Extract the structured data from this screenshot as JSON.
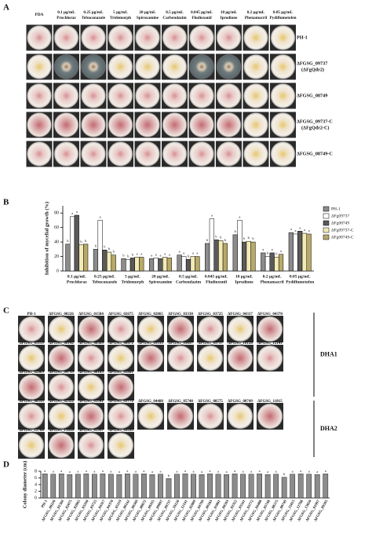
{
  "panel_labels": [
    "A",
    "B",
    "C",
    "D"
  ],
  "panel_a": {
    "columns": [
      {
        "concentration": null,
        "name": "PDA"
      },
      {
        "concentration": "0.1 μg/mL",
        "name": "Prochloraz"
      },
      {
        "concentration": "0.25 μg/mL",
        "name": "Tebuconazole"
      },
      {
        "concentration": "5 μg/mL",
        "name": "Tridemorph"
      },
      {
        "concentration": "20 μg/mL",
        "name": "Spiroxamine"
      },
      {
        "concentration": "0.5 μg/mL",
        "name": "Carbendazim"
      },
      {
        "concentration": "0.045 μg/mL",
        "name": "Fludioxonil"
      },
      {
        "concentration": "10 μg/mL",
        "name": "Iprodione"
      },
      {
        "concentration": "0.2 μg/mL",
        "name": "Phenamacril"
      },
      {
        "concentration": "0.05 μg/mL",
        "name": "Pydiflumetofen"
      }
    ],
    "rows": [
      {
        "label": "PH-1",
        "sublabel": null
      },
      {
        "label": "ΔFGSG_09737",
        "sublabel": "(ΔFgQdr2)"
      },
      {
        "label": "ΔFGSG_08749",
        "sublabel": null
      },
      {
        "label": "ΔFGSG_09737-C",
        "sublabel": "(ΔFgQdr2-C)"
      },
      {
        "label": "ΔFGSG_08749-C",
        "sublabel": null
      }
    ]
  },
  "panel_c": {
    "rows": [
      [
        "PH-1",
        "ΔFGSG_00226",
        "ΔFGSG_01584",
        "ΔFGSG_02675",
        "ΔFGSG_02865",
        "ΔFGSG_03330",
        "ΔFGSG_03725",
        "ΔFGSG_04317",
        "ΔFGSG_04370"
      ],
      [
        "ΔFGSG_05119",
        "ΔFGSG_06142",
        "ΔFGSG_06569",
        "ΔFGSG_08672",
        "ΔFGSG_09335",
        "ΔFGSG_09697",
        "ΔFGSG_09737",
        "ΔFGSG_10120",
        "ΔFGSG_12141"
      ],
      [
        "ΔFGSG_02869",
        "ΔFGSG_04799",
        "ΔFGSG_00183",
        "ΔFGSG_05801"
      ],
      [
        "ΔFGSG_00593",
        "ΔFGSG_02322",
        "ΔFGSG_03541",
        "ΔFGSG_03772",
        "ΔFGSG_04488",
        "ΔFGSG_05748",
        "ΔFGSG_08575",
        "ΔFGSG_08749",
        "ΔFGSG_11815"
      ],
      [
        "ΔFGSG_12768",
        "ΔFGSG_13650",
        "ΔFGSG_01997",
        "ΔFGSG_09595"
      ]
    ],
    "groups": [
      "DHA1",
      "DHA2"
    ]
  },
  "chart_data": [
    {
      "type": "bar",
      "y_label": "Inhibition of mycelial growth (%)",
      "categories": [
        "Prochloraz",
        "Tebuconazole",
        "Tridemorph",
        "Spiroxamine",
        "Carbendazim",
        "Fludioxonil",
        "Iprodione",
        "Phenamacril",
        "Pydiflumetofen"
      ],
      "concentrations": [
        "0.1 μg/mL",
        "0.25 μg/mL",
        "5 μg/mL",
        "20 μg/mL",
        "0.5 μg/mL",
        "0.045 μg/mL",
        "10 μg/mL",
        "0.2 μg/mL",
        "0.05 μg/mL"
      ],
      "series": [
        {
          "name": "PH-1",
          "color": "#8c8c8c",
          "values": [
            37,
            30,
            17,
            17,
            22,
            38,
            50,
            25,
            53
          ],
          "letters": [
            "b",
            "b",
            "b",
            "a",
            "a",
            "b",
            "b",
            "a",
            "a"
          ]
        },
        {
          "name": "ΔFg09737",
          "color": "#ffffff",
          "values": [
            75,
            70,
            16,
            18,
            20,
            72,
            70,
            20,
            51
          ],
          "letters": [
            "a",
            "a",
            "b",
            "a",
            "a",
            "a",
            "a",
            "b",
            "a"
          ]
        },
        {
          "name": "ΔFg08749",
          "color": "#5a5a5a",
          "values": [
            77,
            29,
            18,
            17,
            16,
            43,
            40,
            25,
            55
          ],
          "letters": [
            "a",
            "b",
            "b",
            "a",
            "b",
            "b",
            "b",
            "a",
            "a"
          ]
        },
        {
          "name": "ΔFg09737-C",
          "color": "#f3ebb5",
          "values": [
            36,
            26,
            19,
            19,
            20,
            42,
            41,
            19,
            52
          ],
          "letters": [
            "b",
            "b",
            "a",
            "a",
            "a",
            "b",
            "b",
            "b",
            "a"
          ]
        },
        {
          "name": "ΔFg08749-C",
          "color": "#b7a96a",
          "values": [
            37,
            22,
            19,
            18,
            20,
            38,
            40,
            23,
            51
          ],
          "letters": [
            "b",
            "b",
            "a",
            "a",
            "a",
            "b",
            "b",
            "a",
            "a"
          ]
        }
      ],
      "ylim": [
        0,
        90
      ],
      "yticks": [
        0,
        20,
        40,
        60,
        80
      ],
      "legend": "right"
    },
    {
      "type": "bar",
      "y_label": "Colony diameter (cm)",
      "categories": [
        "PH-1",
        "ΔFGSG_00226",
        "ΔFGSG_01584",
        "ΔFGSG_02675",
        "ΔFGSG_02865",
        "ΔFGSG_03330",
        "ΔFGSG_03725",
        "ΔFGSG_04317",
        "ΔFGSG_04370",
        "ΔFGSG_05119",
        "ΔFGSG_06142",
        "ΔFGSG_06569",
        "ΔFGSG_08672",
        "ΔFGSG_09335",
        "ΔFGSG_09697",
        "ΔFGSG_09737",
        "ΔFGSG_10120",
        "ΔFGSG_12141",
        "ΔFGSG_02869",
        "ΔFGSG_04799",
        "ΔFGSG_00183",
        "ΔFGSG_05801",
        "ΔFGSG_00593",
        "ΔFGSG_02322",
        "ΔFGSG_03541",
        "ΔFGSG_03772",
        "ΔFGSG_04488",
        "ΔFGSG_05748",
        "ΔFGSG_08575",
        "ΔFGSG_08749",
        "ΔFGSG_11815",
        "ΔFGSG_12768",
        "ΔFGSG_13650",
        "ΔFGSG_01997",
        "ΔFGSG_09595"
      ],
      "color": "#8c8c8c",
      "values": [
        7.2,
        7.1,
        7.2,
        7.0,
        7.1,
        7.2,
        7.1,
        7.2,
        7.1,
        7.0,
        7.2,
        7.1,
        7.2,
        7.0,
        7.1,
        5.8,
        7.1,
        7.2,
        7.1,
        7.0,
        7.2,
        7.1,
        7.0,
        7.2,
        7.1,
        7.1,
        7.2,
        7.0,
        7.1,
        6.2,
        7.1,
        7.2,
        7.1,
        7.0,
        7.2
      ],
      "letters": [
        "a",
        "a",
        "a",
        "a",
        "a",
        "a",
        "a",
        "a",
        "a",
        "a",
        "a",
        "a",
        "a",
        "a",
        "a",
        "b",
        "a",
        "a",
        "a",
        "a",
        "a",
        "a",
        "a",
        "a",
        "a",
        "a",
        "a",
        "a",
        "a",
        "b",
        "a",
        "a",
        "a",
        "a",
        "a"
      ],
      "ylim": [
        0,
        8
      ],
      "yticks": [
        0,
        2,
        4,
        6,
        8
      ]
    }
  ]
}
